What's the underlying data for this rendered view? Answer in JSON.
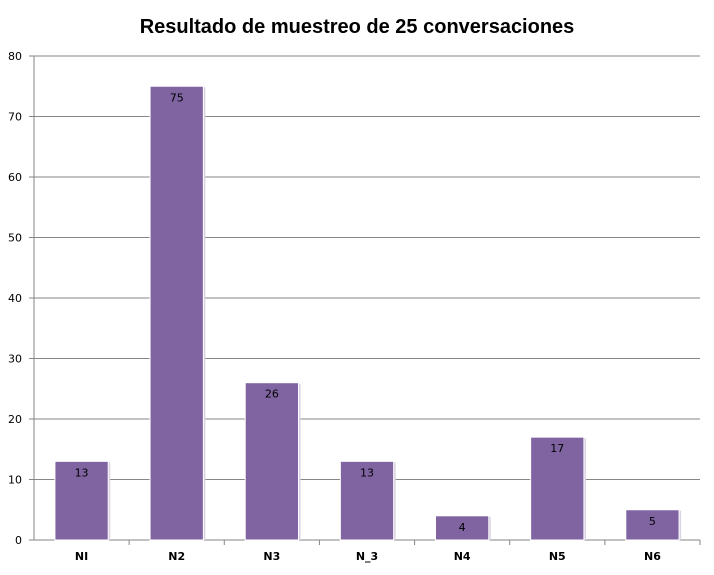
{
  "chart_data": {
    "type": "bar",
    "title": "Resultado de muestreo de 25 conversaciones",
    "categories": [
      "NI",
      "N2",
      "N3",
      "N_3",
      "N4",
      "N5",
      "N6"
    ],
    "values": [
      13,
      75,
      26,
      13,
      4,
      17,
      5
    ],
    "ylim": [
      0,
      80
    ],
    "yticks": [
      0,
      10,
      20,
      30,
      40,
      50,
      60,
      70,
      80
    ],
    "grid": true,
    "data_labels": true,
    "bar_color": "#8064a2"
  }
}
